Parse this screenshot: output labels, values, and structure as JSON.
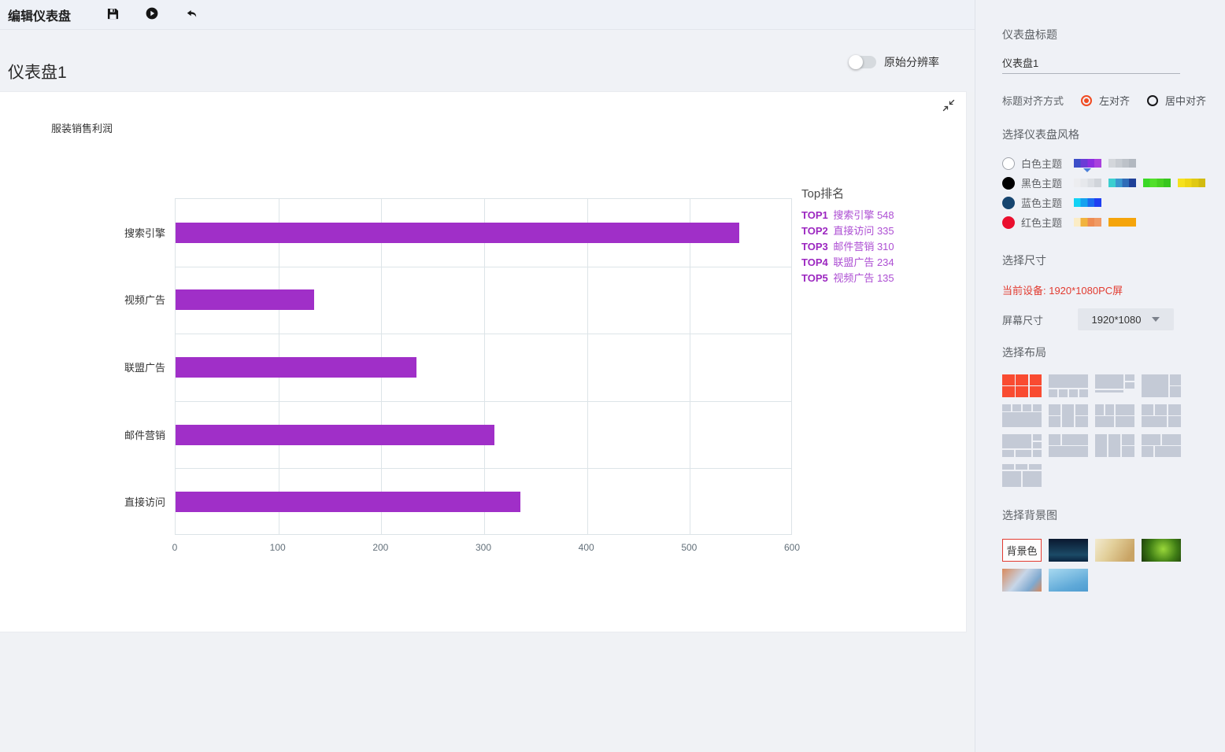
{
  "toolbar": {
    "title": "编辑仪表盘"
  },
  "header": {
    "dashboard_title": "仪表盘1",
    "resolution_toggle": {
      "label": "原始分辨率",
      "on": false
    }
  },
  "chart_data": {
    "type": "bar",
    "orientation": "horizontal",
    "title": "服装销售利润",
    "categories": [
      "搜索引擎",
      "视频广告",
      "联盟广告",
      "邮件营销",
      "直接访问"
    ],
    "category_order": "top-to-bottom",
    "values": [
      548,
      135,
      234,
      310,
      335
    ],
    "xlim": [
      0,
      600
    ],
    "x_ticks": [
      0,
      100,
      200,
      300,
      400,
      500,
      600
    ],
    "grid": true,
    "bar_color": "#a02fc8",
    "legend": {
      "position": "right",
      "title": "Top排名",
      "items": [
        {
          "rank": "TOP1",
          "label": "搜索引擎",
          "value": 548
        },
        {
          "rank": "TOP2",
          "label": "直接访问",
          "value": 335
        },
        {
          "rank": "TOP3",
          "label": "邮件营销",
          "value": 310
        },
        {
          "rank": "TOP4",
          "label": "联盟广告",
          "value": 234
        },
        {
          "rank": "TOP5",
          "label": "视频广告",
          "value": 135
        }
      ]
    }
  },
  "sidebar": {
    "title_label": "仪表盘标题",
    "title_value": "仪表盘1",
    "align": {
      "label": "标题对齐方式",
      "options": [
        {
          "label": "左对齐",
          "selected": true
        },
        {
          "label": "居中对齐",
          "selected": false
        }
      ]
    },
    "style": {
      "label": "选择仪表盘风格",
      "themes": [
        {
          "label": "白色主题",
          "dot": "#ffffff",
          "dot_border": "#a0a4ab",
          "swatches": [
            [
              "#3c4ec8",
              "#6b3bd6",
              "#8d2ee0",
              "#a940dd"
            ],
            [
              "#d3d6db",
              "#c8ccd2",
              "#bdc2c9",
              "#b2b8c0"
            ]
          ],
          "selected_swatch": 0
        },
        {
          "label": "黑色主题",
          "dot": "#000000",
          "dot_border": "#000000",
          "swatches": [
            [
              "#ecedf0",
              "#e6e8ec",
              "#dcdfe4",
              "#d0d4da"
            ],
            [
              "#3bcfd0",
              "#3b98cf",
              "#2f6cb8",
              "#1f4098"
            ],
            [
              "#3ad826",
              "#52df2b",
              "#47d122",
              "#38c61e"
            ],
            [
              "#f6e11d",
              "#eed614",
              "#e0c912",
              "#d2bb10"
            ]
          ],
          "selected_swatch": -1
        },
        {
          "label": "蓝色主题",
          "dot": "#16456f",
          "dot_border": "#16456f",
          "swatches": [
            [
              "#12d2f5",
              "#14a1ef",
              "#1a6cf0",
              "#1e3ff2"
            ]
          ],
          "selected_swatch": -1
        },
        {
          "label": "红色主题",
          "dot": "#ea0f2e",
          "dot_border": "#ea0f2e",
          "swatches": [
            [
              "#fbecc5",
              "#f1b33d",
              "#ee8c52",
              "#f09a64"
            ],
            [
              "#f5a40a"
            ]
          ],
          "selected_swatch": -1
        }
      ]
    },
    "size": {
      "label": "选择尺寸",
      "current_device": "当前设备: 1920*1080PC屏",
      "screen_label": "屏幕尺寸",
      "screen_value": "1920*1080"
    },
    "layout": {
      "label": "选择布局",
      "selected_index": 0,
      "selected_color": "#f94b31",
      "tile_color": "#c4cad6",
      "layouts": [
        {
          "cells": [
            [
              0,
              0,
              31,
              47
            ],
            [
              34.5,
              0,
              31,
              47
            ],
            [
              69,
              0,
              31,
              47
            ],
            [
              0,
              53,
              31,
              47
            ],
            [
              34.5,
              53,
              31,
              47
            ],
            [
              69,
              53,
              31,
              47
            ]
          ]
        },
        {
          "cells": [
            [
              0,
              0,
              100,
              60
            ],
            [
              0,
              66,
              22,
              34
            ],
            [
              26,
              66,
              22,
              34
            ],
            [
              52,
              66,
              22,
              34
            ],
            [
              78,
              66,
              22,
              34
            ]
          ]
        },
        {
          "cells": [
            [
              0,
              0,
              71,
              62
            ],
            [
              75,
              0,
              25,
              29
            ],
            [
              75,
              33,
              25,
              29
            ],
            [
              0,
              68,
              71,
              12
            ]
          ]
        },
        {
          "cells": [
            [
              0,
              0,
              68,
              100
            ],
            [
              72,
              0,
              28,
              47
            ],
            [
              72,
              53,
              28,
              47
            ]
          ]
        },
        {
          "cells": [
            [
              0,
              0,
              22,
              30
            ],
            [
              26,
              0,
              22,
              30
            ],
            [
              52,
              0,
              22,
              30
            ],
            [
              78,
              0,
              22,
              30
            ],
            [
              0,
              36,
              100,
              64
            ]
          ]
        },
        {
          "cells": [
            [
              0,
              0,
              30,
              47
            ],
            [
              0,
              53,
              30,
              47
            ],
            [
              34,
              0,
              30,
              100
            ],
            [
              68,
              0,
              32,
              47
            ],
            [
              68,
              53,
              32,
              47
            ]
          ]
        },
        {
          "cells": [
            [
              0,
              0,
              22,
              47
            ],
            [
              26,
              0,
              22,
              47
            ],
            [
              52,
              0,
              48,
              47
            ],
            [
              0,
              53,
              48,
              47
            ],
            [
              52,
              53,
              48,
              47
            ]
          ]
        },
        {
          "cells": [
            [
              0,
              0,
              30,
              47
            ],
            [
              34,
              0,
              30,
              47
            ],
            [
              68,
              0,
              32,
              47
            ],
            [
              0,
              53,
              64,
              47
            ],
            [
              68,
              53,
              32,
              47
            ]
          ]
        },
        {
          "cells": [
            [
              0,
              0,
              73,
              62
            ],
            [
              77,
              0,
              23,
              29
            ],
            [
              77,
              33,
              23,
              29
            ],
            [
              0,
              68,
              30,
              32
            ],
            [
              34,
              68,
              39,
              32
            ],
            [
              77,
              68,
              23,
              32
            ]
          ]
        },
        {
          "cells": [
            [
              0,
              0,
              30,
              47
            ],
            [
              34,
              0,
              66,
              47
            ],
            [
              0,
              53,
              100,
              47
            ]
          ]
        },
        {
          "cells": [
            [
              0,
              0,
              30,
              100
            ],
            [
              34,
              0,
              30,
              100
            ],
            [
              68,
              0,
              32,
              47
            ],
            [
              68,
              53,
              32,
              47
            ]
          ]
        },
        {
          "cells": [
            [
              0,
              0,
              48,
              47
            ],
            [
              52,
              0,
              48,
              47
            ],
            [
              0,
              53,
              30,
              47
            ],
            [
              34,
              53,
              66,
              47
            ]
          ]
        },
        {
          "cells": [
            [
              0,
              0,
              30,
              24
            ],
            [
              34,
              0,
              30,
              24
            ],
            [
              68,
              0,
              32,
              24
            ],
            [
              0,
              30,
              48,
              70
            ],
            [
              52,
              30,
              48,
              70
            ]
          ]
        }
      ]
    },
    "background": {
      "label": "选择背景图",
      "items": [
        {
          "kind": "color",
          "label": "背景色",
          "selected": true
        },
        {
          "kind": "image",
          "name": "night-sky",
          "colors": [
            "#0a1830",
            "#1b4a66",
            "#0a2440"
          ]
        },
        {
          "kind": "image",
          "name": "warm-field",
          "colors": [
            "#e2cf9a",
            "#c9a465",
            "#f2ead0"
          ]
        },
        {
          "kind": "image",
          "name": "green-bokeh",
          "colors": [
            "#9ad83a",
            "#3f7d15",
            "#1c3a0c"
          ]
        },
        {
          "kind": "image",
          "name": "color-blur",
          "colors": [
            "#d9895c",
            "#c7d6e8",
            "#7fa9cf"
          ]
        },
        {
          "kind": "image",
          "name": "blue-gradient",
          "colors": [
            "#a8d9f0",
            "#5fa9d8",
            "#4f9cd0"
          ]
        }
      ]
    }
  }
}
